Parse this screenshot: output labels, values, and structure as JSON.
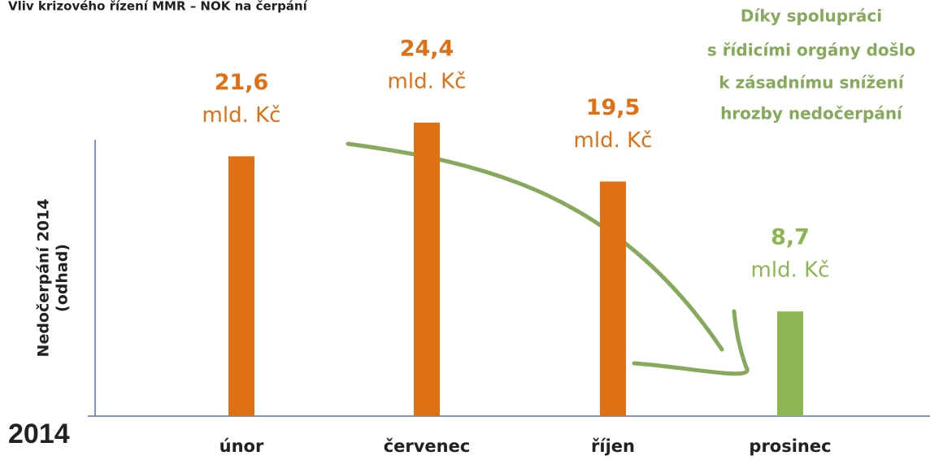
{
  "chart_data": {
    "type": "bar",
    "title": "Vliv krizového řízení MMR – NOK na čerpání",
    "y_label": [
      "Nedočerpání 2014",
      "(odhad)"
    ],
    "year_label": "2014",
    "annotation": [
      "Díky spolupráci",
      "s řídicími orgány došlo",
      "k zásadnímu snížení",
      "hrozby nedočerpání"
    ],
    "unit": "mld. Kč",
    "categories": [
      "únor",
      "červenec",
      "říjen",
      "prosinec"
    ],
    "values": [
      21.6,
      24.4,
      19.5,
      8.7
    ],
    "value_labels": [
      "21,6",
      "24,4",
      "19,5",
      "8,7"
    ],
    "colors": [
      "#e07014",
      "#e07014",
      "#e07014",
      "#8db552"
    ],
    "annotation_color": "#86a95c",
    "ylim": [
      0,
      25
    ]
  }
}
